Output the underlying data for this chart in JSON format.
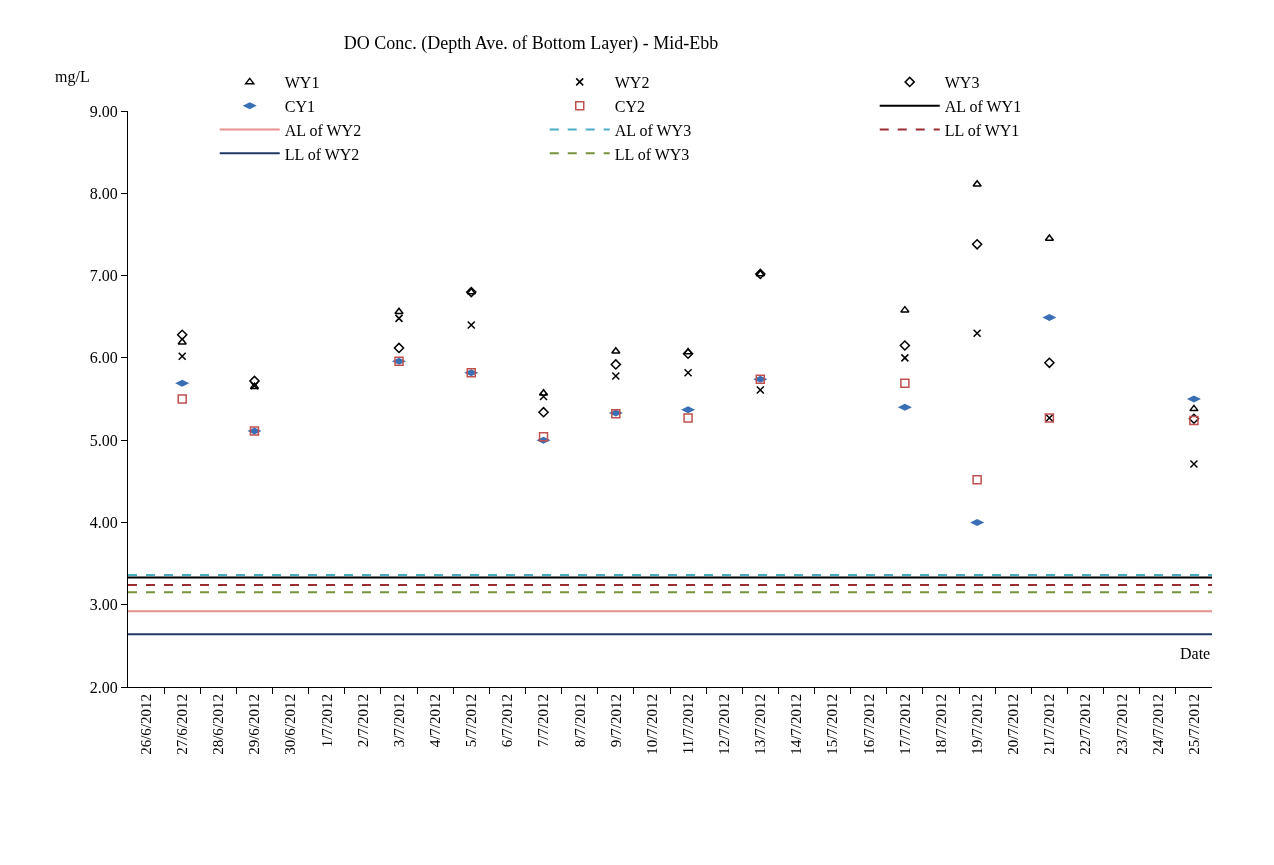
{
  "chart_data": {
    "type": "scatter",
    "title": "DO Conc. (Depth Ave. of Bottom Layer) - Mid-Ebb",
    "xlabel": "Date",
    "ylabel": "mg/L",
    "categories": [
      "26/6/2012",
      "27/6/2012",
      "28/6/2012",
      "29/6/2012",
      "30/6/2012",
      "1/7/2012",
      "2/7/2012",
      "3/7/2012",
      "4/7/2012",
      "5/7/2012",
      "6/7/2012",
      "7/7/2012",
      "8/7/2012",
      "9/7/2012",
      "10/7/2012",
      "11/7/2012",
      "12/7/2012",
      "13/7/2012",
      "14/7/2012",
      "15/7/2012",
      "16/7/2012",
      "17/7/2012",
      "18/7/2012",
      "19/7/2012",
      "20/7/2012",
      "21/7/2012",
      "22/7/2012",
      "23/7/2012",
      "24/7/2012",
      "25/7/2012"
    ],
    "series": [
      {
        "name": "WY1",
        "color": "#000000",
        "marker": "triangle",
        "values": [
          null,
          6.19,
          null,
          5.65,
          null,
          null,
          null,
          6.56,
          null,
          6.8,
          null,
          5.57,
          null,
          6.08,
          null,
          6.07,
          null,
          7.02,
          null,
          null,
          null,
          6.58,
          null,
          8.11,
          null,
          7.45,
          null,
          null,
          null,
          5.38
        ]
      },
      {
        "name": "WY2",
        "color": "#000000",
        "marker": "cross",
        "values": [
          null,
          6.02,
          null,
          5.66,
          null,
          null,
          null,
          6.48,
          null,
          6.4,
          null,
          5.53,
          null,
          5.78,
          null,
          5.82,
          null,
          5.61,
          null,
          null,
          null,
          6.0,
          null,
          6.3,
          null,
          5.27,
          null,
          null,
          null,
          4.71
        ]
      },
      {
        "name": "WY3",
        "color": "#000000",
        "marker": "diamond",
        "values": [
          null,
          6.28,
          null,
          5.72,
          null,
          null,
          null,
          6.12,
          null,
          6.8,
          null,
          5.34,
          null,
          5.92,
          null,
          6.05,
          null,
          7.02,
          null,
          null,
          null,
          6.15,
          null,
          7.38,
          null,
          5.94,
          null,
          null,
          null,
          5.26
        ]
      },
      {
        "name": "CY1",
        "color": "#3a6fb5",
        "values": [
          null,
          5.69,
          null,
          5.11,
          null,
          null,
          null,
          5.96,
          null,
          5.82,
          null,
          5.0,
          null,
          5.33,
          null,
          5.37,
          null,
          5.74,
          null,
          null,
          null,
          5.4,
          null,
          4.0,
          null,
          6.49,
          null,
          null,
          null,
          5.5
        ]
      },
      {
        "name": "CY2",
        "color": "#c0504d",
        "marker": "square",
        "values": [
          null,
          5.5,
          null,
          5.11,
          null,
          null,
          null,
          5.96,
          null,
          5.82,
          null,
          5.04,
          null,
          5.32,
          null,
          5.27,
          null,
          5.74,
          null,
          null,
          null,
          5.69,
          null,
          4.52,
          null,
          5.27,
          null,
          null,
          null,
          5.24
        ]
      }
    ],
    "ref_lines": [
      {
        "axis": "y",
        "value": 3.33,
        "label": "AL of WY1",
        "color": "#000000",
        "line_style": "solid"
      },
      {
        "axis": "y",
        "value": 2.92,
        "label": "AL of WY2",
        "color": "#e8908c",
        "line_style": "solid"
      },
      {
        "axis": "y",
        "value": 3.36,
        "label": "AL of WY3",
        "color": "#4bacc6",
        "line_style": "dashed"
      },
      {
        "axis": "y",
        "value": 3.24,
        "label": "LL of WY1",
        "color": "#9b2d30",
        "line_style": "dashed"
      },
      {
        "axis": "y",
        "value": 2.64,
        "label": "LL of WY2",
        "color": "#1f3864",
        "line_style": "solid"
      },
      {
        "axis": "y",
        "value": 3.15,
        "label": "LL of WY3",
        "color": "#77933c",
        "line_style": "dashed"
      }
    ],
    "ylim": [
      2,
      9
    ],
    "yticks": [
      {
        "value": 2,
        "label": "2.00"
      },
      {
        "value": 3,
        "label": "3.00"
      },
      {
        "value": 4,
        "label": "4.00"
      },
      {
        "value": 5,
        "label": "5.00"
      },
      {
        "value": 6,
        "label": "6.00"
      },
      {
        "value": 7,
        "label": "7.00"
      },
      {
        "value": 8,
        "label": "8.00"
      },
      {
        "value": 9,
        "label": "9.00"
      }
    ],
    "grid": false,
    "legend": "top"
  }
}
